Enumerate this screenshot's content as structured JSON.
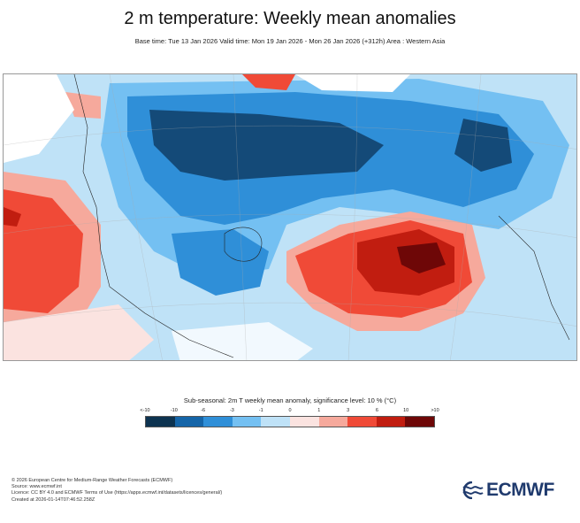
{
  "header": {
    "title": "2 m temperature: Weekly mean anomalies",
    "subtitle": "Base time: Tue 13 Jan 2026 Valid time: Mon 19 Jan 2026 - Mon 26 Jan 2026 (+312h) Area : Western Asia"
  },
  "legend": {
    "title": "Sub-seasonal: 2m T weekly mean anomaly, significance level: 10 % (°C)",
    "ticks": [
      "<-10",
      "-10",
      "-6",
      "-3",
      "-1",
      "0",
      "1",
      "3",
      "6",
      "10",
      ">10"
    ],
    "colors": [
      "#0d3350",
      "#1565a8",
      "#2f8fd8",
      "#74c0f2",
      "#bfe2f7",
      "#fbe3e0",
      "#f6a99c",
      "#f04a37",
      "#c11d10",
      "#6e0707"
    ]
  },
  "map": {
    "region": "Western Asia",
    "colors": {
      "very_cold": "#144a78",
      "cold": "#2f8fd8",
      "cool": "#74c0f2",
      "slightly_cool": "#bfe2f7",
      "neutral": "#ffffff",
      "slightly_warm": "#fbe3e0",
      "warm": "#f6a99c",
      "hot": "#f04a37",
      "very_hot": "#c11d10",
      "extreme_hot": "#6e0707"
    }
  },
  "footer": {
    "copyright": "© 2026 European Centre for Medium-Range Weather Forecasts (ECMWF)",
    "source": "Source: www.ecmwf.int",
    "licence": "Licence: CC BY 4.0 and ECMWF Terms of Use (https://apps.ecmwf.int/datasets/licences/general/)",
    "created": "Created at 2026-01-14T07:46:52.258Z"
  },
  "logo": {
    "text": "ECMWF"
  }
}
